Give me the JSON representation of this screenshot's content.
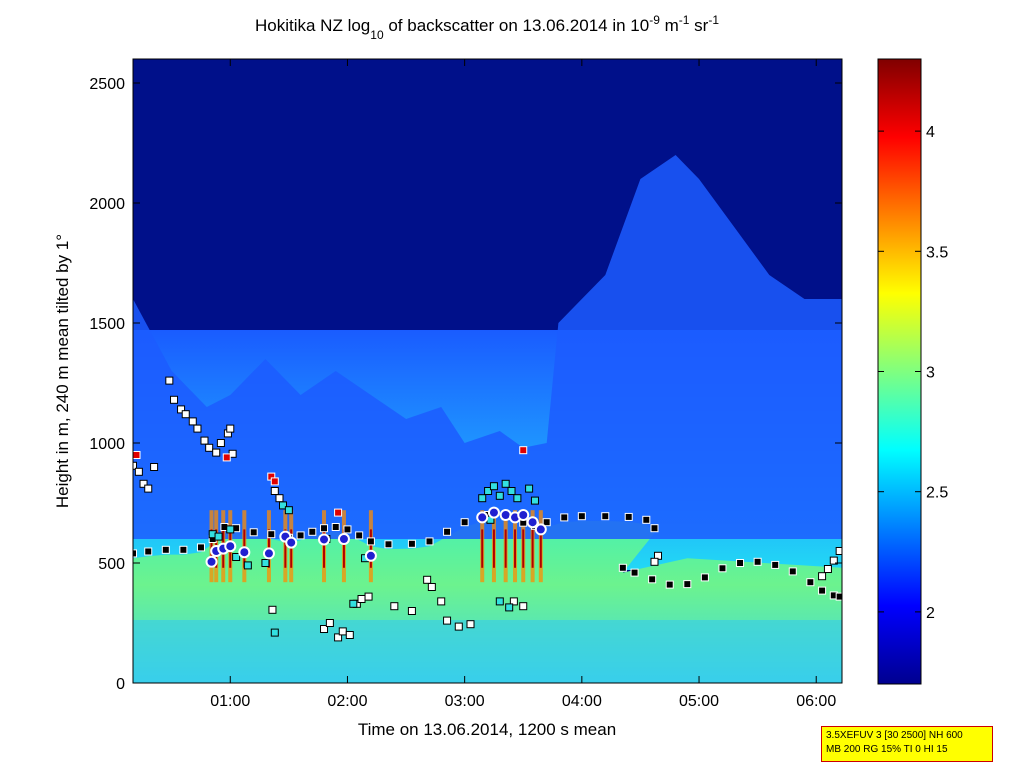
{
  "chart_data": {
    "type": "heatmap",
    "title_parts": {
      "main": "Hokitika NZ log",
      "sub10": "10",
      "mid": " of backscatter on 13.06.2014 in 10",
      "sup_minus9": "-9",
      "m": " m",
      "sup_minus1a": "-1",
      "sr": " sr",
      "sup_minus1b": "-1"
    },
    "xlabel": "Time on 13.06.2014, 1200 s mean",
    "ylabel": "Height in m, 240 m mean tilted by 1°",
    "x_unit": "hours (decimal, local time)",
    "xlim": [
      0.17,
      6.22
    ],
    "ylim": [
      0,
      2600
    ],
    "xticks": [
      {
        "value": 1,
        "label": "01:00"
      },
      {
        "value": 2,
        "label": "02:00"
      },
      {
        "value": 3,
        "label": "03:00"
      },
      {
        "value": 4,
        "label": "04:00"
      },
      {
        "value": 5,
        "label": "05:00"
      },
      {
        "value": 6,
        "label": "06:00"
      }
    ],
    "yticks": [
      {
        "value": 0,
        "label": "0"
      },
      {
        "value": 500,
        "label": "500"
      },
      {
        "value": 1000,
        "label": "1000"
      },
      {
        "value": 1500,
        "label": "1500"
      },
      {
        "value": 2000,
        "label": "2000"
      },
      {
        "value": 2500,
        "label": "2500"
      }
    ],
    "colorbar": {
      "range": [
        1.7,
        4.3
      ],
      "colormap": "jet",
      "ticks": [
        {
          "value": 2,
          "label": "2"
        },
        {
          "value": 2.5,
          "label": "2.5"
        },
        {
          "value": 3,
          "label": "3"
        },
        {
          "value": 3.5,
          "label": "3.5"
        },
        {
          "value": 4,
          "label": "4"
        }
      ]
    },
    "top_of_scattering_layer_m": [
      [
        0.17,
        1600
      ],
      [
        0.5,
        1300
      ],
      [
        0.8,
        1150
      ],
      [
        1.0,
        1200
      ],
      [
        1.3,
        1350
      ],
      [
        1.6,
        1200
      ],
      [
        1.9,
        1300
      ],
      [
        2.2,
        1200
      ],
      [
        2.5,
        1100
      ],
      [
        2.8,
        1150
      ],
      [
        3.0,
        1000
      ],
      [
        3.3,
        1050
      ],
      [
        3.5,
        980
      ],
      [
        3.7,
        1000
      ],
      [
        3.8,
        1500
      ],
      [
        4.0,
        1600
      ],
      [
        4.2,
        1700
      ],
      [
        4.5,
        2100
      ],
      [
        4.8,
        2200
      ],
      [
        5.0,
        2100
      ],
      [
        5.3,
        1900
      ],
      [
        5.6,
        1700
      ],
      [
        5.9,
        1600
      ],
      [
        6.22,
        1600
      ]
    ],
    "series": [
      {
        "name": "",
        "marker": "black squares",
        "points": [
          [
            0.17,
            540
          ],
          [
            0.3,
            548
          ],
          [
            0.45,
            555
          ],
          [
            0.6,
            555
          ],
          [
            0.75,
            565
          ],
          [
            0.85,
            600
          ],
          [
            0.95,
            650
          ],
          [
            1.05,
            645
          ],
          [
            1.2,
            628
          ],
          [
            1.35,
            620
          ],
          [
            1.5,
            605
          ],
          [
            1.6,
            615
          ],
          [
            1.7,
            630
          ],
          [
            1.8,
            645
          ],
          [
            1.9,
            650
          ],
          [
            2.0,
            640
          ],
          [
            2.1,
            615
          ],
          [
            2.2,
            590
          ],
          [
            2.35,
            578
          ],
          [
            2.55,
            580
          ],
          [
            2.7,
            590
          ],
          [
            2.85,
            630
          ],
          [
            3.0,
            670
          ],
          [
            3.2,
            700
          ],
          [
            3.35,
            695
          ],
          [
            3.5,
            668
          ],
          [
            3.6,
            655
          ],
          [
            3.7,
            670
          ],
          [
            3.85,
            690
          ],
          [
            4.0,
            695
          ],
          [
            4.2,
            695
          ],
          [
            4.4,
            692
          ],
          [
            4.55,
            680
          ],
          [
            4.62,
            645
          ],
          [
            4.35,
            480
          ],
          [
            4.45,
            460
          ],
          [
            4.6,
            432
          ],
          [
            4.75,
            410
          ],
          [
            4.9,
            412
          ],
          [
            5.05,
            440
          ],
          [
            5.2,
            478
          ],
          [
            5.35,
            500
          ],
          [
            5.5,
            505
          ],
          [
            5.65,
            492
          ],
          [
            5.8,
            465
          ],
          [
            5.95,
            420
          ],
          [
            6.05,
            385
          ],
          [
            6.15,
            365
          ],
          [
            6.2,
            360
          ]
        ]
      },
      {
        "name": "",
        "marker": "white squares",
        "points": [
          [
            0.17,
            905
          ],
          [
            0.22,
            880
          ],
          [
            0.26,
            830
          ],
          [
            0.3,
            810
          ],
          [
            0.35,
            900
          ],
          [
            0.48,
            1260
          ],
          [
            0.52,
            1180
          ],
          [
            0.58,
            1140
          ],
          [
            0.62,
            1120
          ],
          [
            0.68,
            1090
          ],
          [
            0.72,
            1060
          ],
          [
            0.78,
            1010
          ],
          [
            0.82,
            980
          ],
          [
            0.88,
            960
          ],
          [
            0.92,
            1000
          ],
          [
            0.98,
            1040
          ],
          [
            1.0,
            1060
          ],
          [
            1.02,
            955
          ],
          [
            1.38,
            800
          ],
          [
            1.42,
            770
          ],
          [
            1.36,
            305
          ],
          [
            1.8,
            225
          ],
          [
            1.85,
            250
          ],
          [
            1.92,
            190
          ],
          [
            1.96,
            215
          ],
          [
            2.02,
            200
          ],
          [
            2.08,
            330
          ],
          [
            2.12,
            350
          ],
          [
            2.18,
            360
          ],
          [
            2.4,
            320
          ],
          [
            2.55,
            300
          ],
          [
            2.68,
            430
          ],
          [
            2.72,
            400
          ],
          [
            2.8,
            340
          ],
          [
            2.85,
            260
          ],
          [
            2.95,
            235
          ],
          [
            3.05,
            245
          ],
          [
            3.42,
            340
          ],
          [
            3.5,
            320
          ],
          [
            4.65,
            530
          ],
          [
            4.62,
            505
          ],
          [
            6.05,
            445
          ],
          [
            6.1,
            475
          ],
          [
            6.15,
            510
          ],
          [
            6.2,
            550
          ]
        ]
      },
      {
        "name": "",
        "marker": "cyan squares",
        "points": [
          [
            0.85,
            620
          ],
          [
            0.9,
            610
          ],
          [
            1.0,
            640
          ],
          [
            1.05,
            525
          ],
          [
            1.15,
            490
          ],
          [
            1.3,
            500
          ],
          [
            1.38,
            210
          ],
          [
            1.45,
            740
          ],
          [
            1.5,
            720
          ],
          [
            1.82,
            600
          ],
          [
            2.05,
            330
          ],
          [
            2.15,
            520
          ],
          [
            3.15,
            770
          ],
          [
            3.2,
            800
          ],
          [
            3.25,
            820
          ],
          [
            3.3,
            780
          ],
          [
            3.35,
            830
          ],
          [
            3.4,
            800
          ],
          [
            3.45,
            770
          ],
          [
            3.55,
            810
          ],
          [
            3.6,
            760
          ],
          [
            3.3,
            340
          ],
          [
            3.38,
            315
          ],
          [
            3.22,
            680
          ],
          [
            3.5,
            700
          ]
        ]
      },
      {
        "name": "",
        "marker": "red squares",
        "points": [
          [
            0.2,
            950
          ],
          [
            0.97,
            940
          ],
          [
            1.35,
            860
          ],
          [
            1.38,
            840
          ],
          [
            1.92,
            710
          ],
          [
            3.5,
            970
          ]
        ]
      },
      {
        "name": "",
        "marker": "blue circles with white edge",
        "points": [
          [
            0.84,
            505
          ],
          [
            0.88,
            550
          ],
          [
            0.94,
            560
          ],
          [
            1.0,
            570
          ],
          [
            1.12,
            545
          ],
          [
            1.33,
            540
          ],
          [
            1.47,
            610
          ],
          [
            1.52,
            585
          ],
          [
            1.8,
            598
          ],
          [
            1.97,
            600
          ],
          [
            2.2,
            530
          ],
          [
            3.15,
            690
          ],
          [
            3.25,
            710
          ],
          [
            3.35,
            700
          ],
          [
            3.43,
            690
          ],
          [
            3.5,
            700
          ],
          [
            3.58,
            670
          ],
          [
            3.65,
            640
          ]
        ]
      }
    ]
  },
  "infobox": {
    "line1": "3.5XEFUV 3 [30 2500] NH 600",
    "line2": "MB 200 RG 15% TI 0 HI 15"
  }
}
